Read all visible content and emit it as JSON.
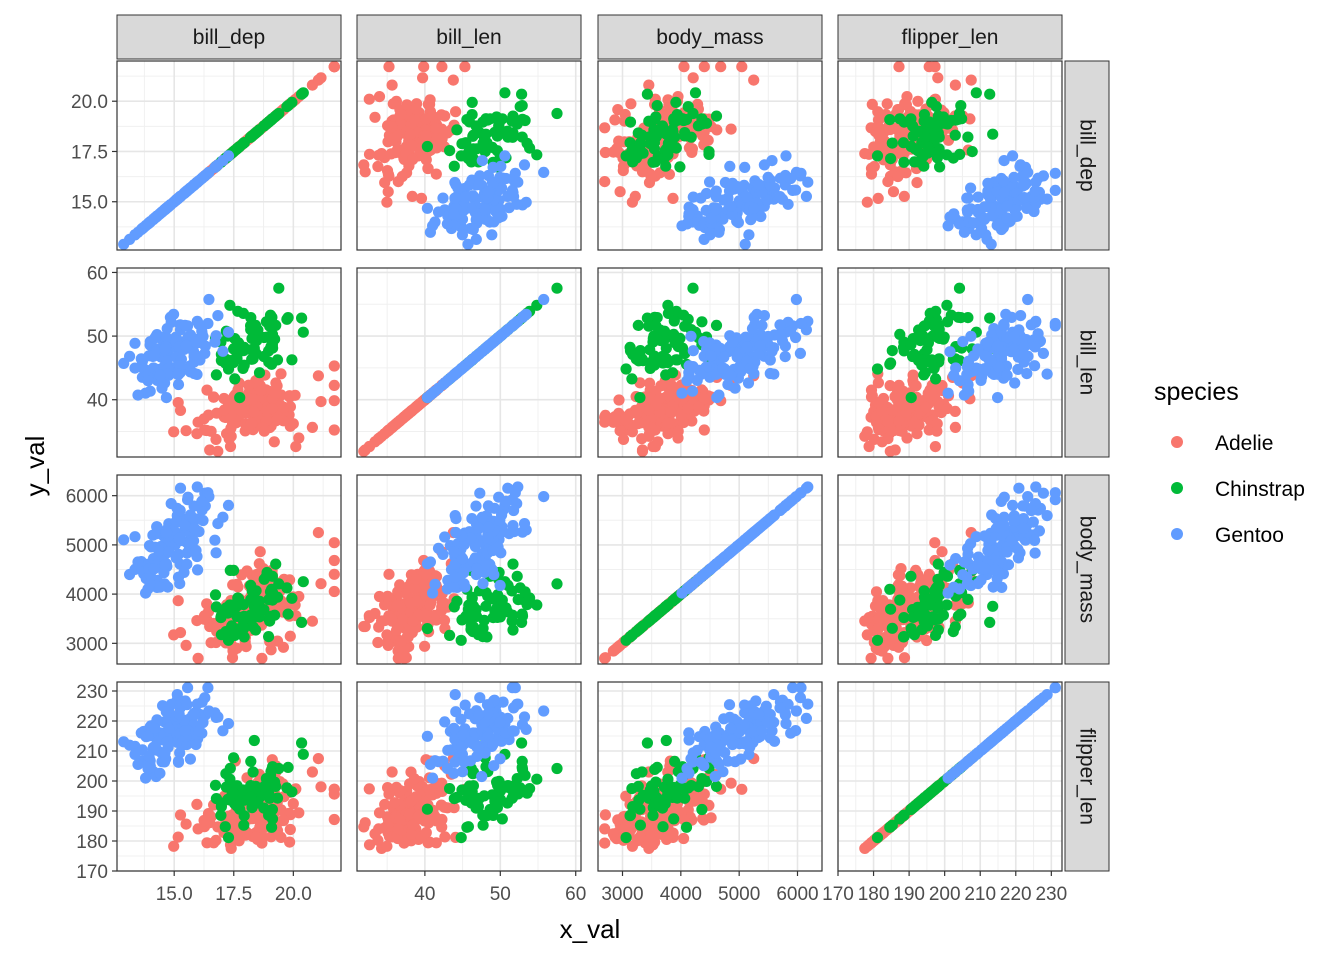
{
  "chart_data": {
    "type": "scatter",
    "facet_layout": "grid",
    "xlabel": "x_val",
    "ylabel": "y_val",
    "variables": [
      "bill_dep",
      "bill_len",
      "body_mass",
      "flipper_len"
    ],
    "col_strips": [
      "bill_dep",
      "bill_len",
      "body_mass",
      "flipper_len"
    ],
    "row_strips": [
      "bill_dep",
      "bill_len",
      "body_mass",
      "flipper_len"
    ],
    "ranges": {
      "bill_dep": [
        12.6,
        22.0
      ],
      "bill_len": [
        31.0,
        60.7
      ],
      "body_mass": [
        2580,
        6420
      ],
      "flipper_len": [
        170,
        233
      ]
    },
    "x_ticks": {
      "bill_dep": [
        "15.0",
        "17.5",
        "20.0"
      ],
      "bill_len": [
        "40",
        "50",
        "60"
      ],
      "body_mass": [
        "3000",
        "4000",
        "5000",
        "6000"
      ],
      "flipper_len": [
        "170",
        "180",
        "190",
        "200",
        "210",
        "220",
        "230"
      ]
    },
    "y_ticks": {
      "bill_dep": [
        "15.0",
        "17.5",
        "20.0"
      ],
      "bill_len": [
        "40",
        "50",
        "60"
      ],
      "body_mass": [
        "3000",
        "4000",
        "5000",
        "6000"
      ],
      "flipper_len": [
        "170",
        "180",
        "190",
        "200",
        "210",
        "220",
        "230"
      ]
    },
    "grid": true,
    "legend": {
      "title": "species",
      "position": "right",
      "entries": [
        "Adelie",
        "Chinstrap",
        "Gentoo"
      ]
    },
    "series": [
      {
        "name": "Adelie",
        "color": "#F8766D",
        "centroids": {
          "bill_dep": 18.3,
          "bill_len": 38.8,
          "body_mass": 3700,
          "flipper_len": 190
        },
        "count": 150
      },
      {
        "name": "Chinstrap",
        "color": "#00BA38",
        "centroids": {
          "bill_dep": 18.4,
          "bill_len": 48.8,
          "body_mass": 3730,
          "flipper_len": 196
        },
        "count": 68
      },
      {
        "name": "Gentoo",
        "color": "#619CFF",
        "centroids": {
          "bill_dep": 15.0,
          "bill_len": 47.5,
          "body_mass": 5080,
          "flipper_len": 217
        },
        "count": 123
      }
    ]
  }
}
